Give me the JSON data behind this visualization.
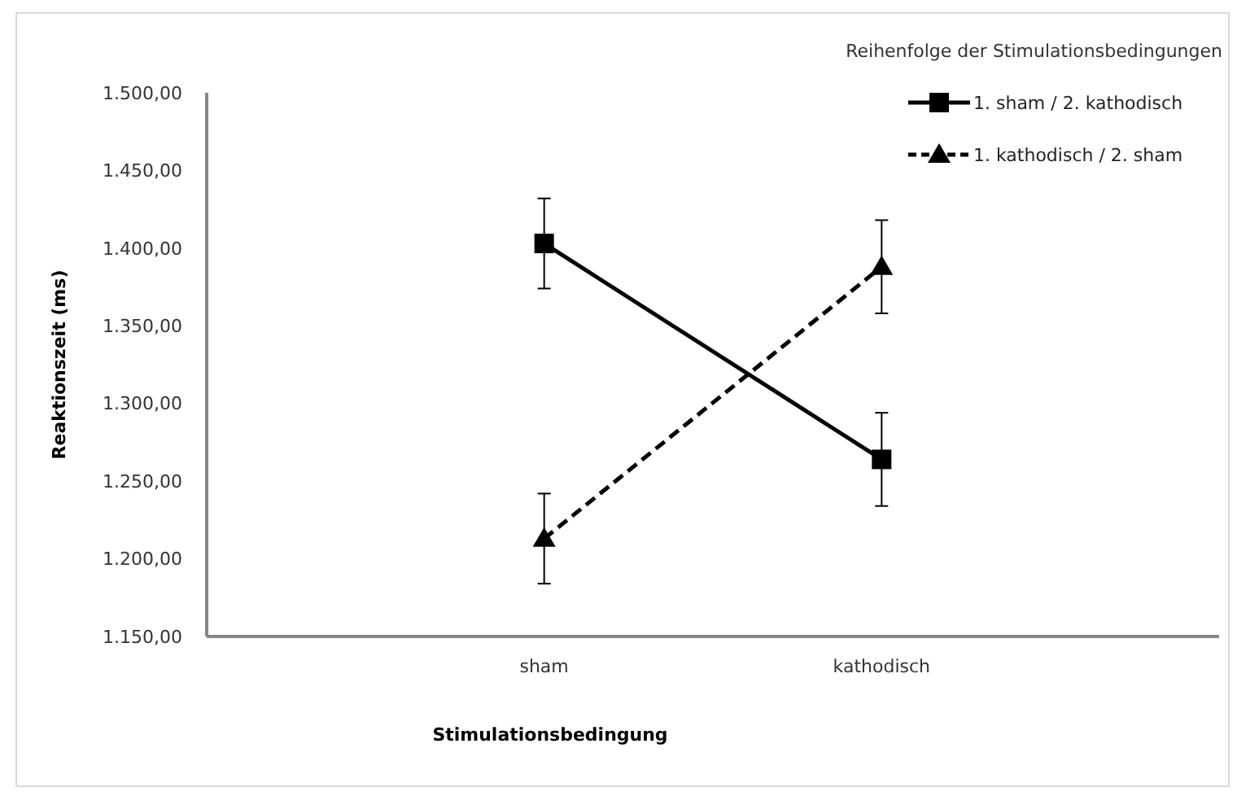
{
  "chart_data": {
    "type": "line",
    "xlabel": "Stimulationsbedingung",
    "ylabel": "Reaktionszeit (ms)",
    "legend_title": "Reihenfolge der Stimulationsbedingungen",
    "legend": "top right",
    "categories": [
      "sham",
      "kathodisch"
    ],
    "ylim": [
      1150,
      1500
    ],
    "yticks": [
      {
        "value": 1150,
        "label": "1.150,00"
      },
      {
        "value": 1200,
        "label": "1.200,00"
      },
      {
        "value": 1250,
        "label": "1.250,00"
      },
      {
        "value": 1300,
        "label": "1.300,00"
      },
      {
        "value": 1350,
        "label": "1.350,00"
      },
      {
        "value": 1400,
        "label": "1.400,00"
      },
      {
        "value": 1450,
        "label": "1.450,00"
      },
      {
        "value": 1500,
        "label": "1.500,00"
      }
    ],
    "grid": false,
    "series": [
      {
        "name": "1. sham / 2. kathodisch",
        "color": "#000000",
        "values": [
          1403,
          1264
        ],
        "errors": [
          29,
          30
        ],
        "marker": "square",
        "line_style": "solid"
      },
      {
        "name": "1. kathodisch / 2. sham",
        "color": "#000000",
        "values": [
          1213,
          1388
        ],
        "errors": [
          29,
          30
        ],
        "marker": "triangle",
        "line_style": "dashed"
      }
    ]
  }
}
